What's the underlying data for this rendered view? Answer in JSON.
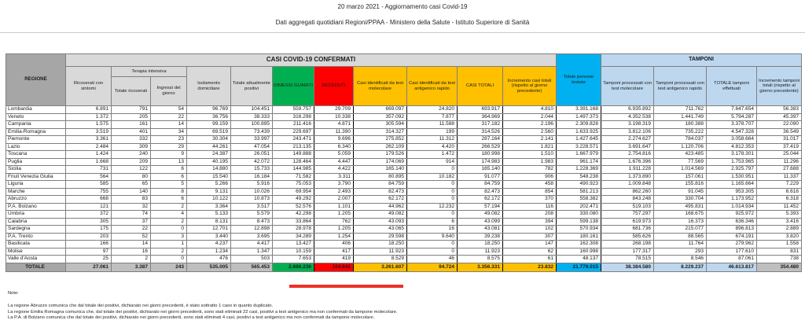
{
  "header": {
    "title": "20 marzo 2021 - Aggiornamento casi Covid-19",
    "subtitle": "Dati aggregati quotidiani Regioni/PPAA - Ministero della Salute - Istituto Superiore di Sanità"
  },
  "colors": {
    "green_dimessi": "#00B050",
    "red_deceduti": "#FF0000",
    "yellow_casi": "#FFC000",
    "cyan_testate": "#00B0F0",
    "blue_tamponi": "#BDD7EE",
    "gray_header": "#A6A6A6",
    "gray_light": "#D9D9D9",
    "gray_total": "#BFBFBF"
  },
  "table": {
    "group_headers": {
      "confermati": "CASI COVID-19 CONFERMATI",
      "terapia_intensiva": "Terapia intensiva",
      "tamponi": "TAMPONI"
    },
    "columns": [
      "REGIONE",
      "Ricoverati con sintomi",
      "Totale ricoverati",
      "Ingressi del giorno",
      "Isolamento domiciliare",
      "Totale attualmente positivi",
      "DIMESSI GUARITI",
      "DECEDUTI",
      "Casi identificati da test molecolare",
      "Casi identificati da test antigenico rapido",
      "CASI TOTALI",
      "Incremento casi totali (rispetto al giorno precedente)",
      "Totale persone testate",
      "Tamponi processati con test molecolare",
      "Tamponi processati con test antigenico rapido",
      "TOTALE tamponi effettuati",
      "Incremento tamponi totali (rispetto al giorno precedente)"
    ],
    "rows": [
      [
        "Lombardia",
        "6.891",
        "791",
        "54",
        "96.769",
        "104.451",
        "559.757",
        "29.709",
        "669.097",
        "24.820",
        "693.917",
        "4.810",
        "3.391.168",
        "6.935.892",
        "711.762",
        "7.647.654",
        "56.383"
      ],
      [
        "Veneto",
        "1.372",
        "205",
        "22",
        "36.756",
        "38.333",
        "316.298",
        "10.338",
        "357.092",
        "7.877",
        "364.969",
        "2.044",
        "1.497.373",
        "4.352.538",
        "1.441.749",
        "5.794.287",
        "45.397"
      ],
      [
        "Campania",
        "1.575",
        "161",
        "14",
        "99.159",
        "100.895",
        "211.416",
        "4.871",
        "305.594",
        "11.588",
        "317.182",
        "2.196",
        "2.309.828",
        "3.198.319",
        "180.388",
        "3.378.707",
        "22.090"
      ],
      [
        "Emilia-Romagna",
        "3.519",
        "401",
        "34",
        "69.519",
        "73.439",
        "229.697",
        "11.390",
        "314.327",
        "199",
        "314.526",
        "2.560",
        "1.633.925",
        "3.812.106",
        "735.222",
        "4.547.328",
        "36.549"
      ],
      [
        "Piemonte",
        "3.361",
        "332",
        "23",
        "30.304",
        "33.997",
        "243.471",
        "9.696",
        "275.852",
        "11.312",
        "287.164",
        "2.141",
        "1.427.645",
        "2.274.627",
        "784.037",
        "3.058.664",
        "31.017"
      ],
      [
        "Lazio",
        "2.484",
        "309",
        "29",
        "44.261",
        "47.054",
        "213.135",
        "6.340",
        "262.109",
        "4.420",
        "266.529",
        "1.821",
        "3.228.571",
        "3.691.647",
        "1.120.706",
        "4.812.353",
        "37.419"
      ],
      [
        "Toscana",
        "1.424",
        "240",
        "9",
        "24.387",
        "26.051",
        "149.888",
        "5.059",
        "179.526",
        "1.472",
        "180.998",
        "1.510",
        "1.667.979",
        "2.754.816",
        "423.485",
        "3.178.301",
        "25.044"
      ],
      [
        "Puglia",
        "1.668",
        "209",
        "13",
        "40.195",
        "42.072",
        "128.464",
        "4.447",
        "174.069",
        "914",
        "174.983",
        "1.983",
        "961.174",
        "1.676.396",
        "77.569",
        "1.753.965",
        "11.296"
      ],
      [
        "Sicilia",
        "731",
        "122",
        "6",
        "14.880",
        "15.733",
        "144.985",
        "4.422",
        "165.140",
        "0",
        "165.140",
        "782",
        "1.228.369",
        "1.911.228",
        "1.014.569",
        "2.925.797",
        "27.688"
      ],
      [
        "Friuli Venezia Giulia",
        "564",
        "80",
        "6",
        "15.540",
        "16.184",
        "71.582",
        "3.311",
        "80.895",
        "10.182",
        "91.077",
        "906",
        "548.238",
        "1.373.890",
        "157.061",
        "1.530.951",
        "11.337"
      ],
      [
        "Liguria",
        "585",
        "65",
        "5",
        "5.266",
        "5.916",
        "75.053",
        "3.790",
        "84.759",
        "0",
        "84.759",
        "458",
        "490.923",
        "1.009.848",
        "155.816",
        "1.165.664",
        "7.229"
      ],
      [
        "Marche",
        "755",
        "140",
        "8",
        "9.131",
        "10.026",
        "69.954",
        "2.493",
        "82.473",
        "0",
        "82.473",
        "854",
        "581.213",
        "862.260",
        "91.045",
        "953.305",
        "6.616"
      ],
      [
        "Abruzzo",
        "668",
        "83",
        "6",
        "10.122",
        "10.873",
        "49.292",
        "2.007",
        "62.172",
        "0",
        "62.172",
        "370",
        "558.382",
        "843.248",
        "330.704",
        "1.173.952",
        "6.318"
      ],
      [
        "P.A. Bolzano",
        "121",
        "32",
        "2",
        "3.364",
        "3.517",
        "52.576",
        "1.101",
        "44.962",
        "12.232",
        "57.194",
        "116",
        "202.471",
        "519.103",
        "495.831",
        "1.014.934",
        "11.452"
      ],
      [
        "Umbria",
        "372",
        "74",
        "4",
        "5.133",
        "5.579",
        "42.298",
        "1.205",
        "49.082",
        "0",
        "49.082",
        "208",
        "330.080",
        "757.297",
        "168.675",
        "925.972",
        "5.393"
      ],
      [
        "Calabria",
        "305",
        "37",
        "2",
        "8.131",
        "8.473",
        "33.864",
        "762",
        "43.093",
        "6",
        "43.099",
        "394",
        "599.138",
        "619.973",
        "16.373",
        "636.346",
        "3.416"
      ],
      [
        "Sardegna",
        "175",
        "22",
        "0",
        "12.701",
        "12.898",
        "28.978",
        "1.205",
        "43.065",
        "16",
        "43.081",
        "102",
        "570.934",
        "681.736",
        "215.077",
        "896.813",
        "2.889"
      ],
      [
        "P.A. Trento",
        "203",
        "52",
        "3",
        "3.440",
        "3.695",
        "34.289",
        "1.254",
        "29.598",
        "9.640",
        "39.238",
        "307",
        "180.161",
        "585.626",
        "88.565",
        "674.191",
        "3.820"
      ],
      [
        "Basilicata",
        "166",
        "14",
        "1",
        "4.237",
        "4.417",
        "13.427",
        "406",
        "18.250",
        "0",
        "18.250",
        "147",
        "162.308",
        "268.198",
        "11.764",
        "279.962",
        "1.558"
      ],
      [
        "Molise",
        "97",
        "16",
        "2",
        "1.234",
        "1.347",
        "10.159",
        "417",
        "11.923",
        "0",
        "11.923",
        "62",
        "160.998",
        "177.317",
        "293",
        "177.610",
        "831"
      ],
      [
        "Valle d'Aosta",
        "25",
        "2",
        "0",
        "476",
        "503",
        "7.653",
        "419",
        "8.529",
        "46",
        "8.575",
        "61",
        "48.137",
        "78.515",
        "8.546",
        "87.061",
        "738"
      ]
    ],
    "total_row": [
      "TOTALE",
      "27.061",
      "3.387",
      "243",
      "535.005",
      "565.453",
      "2.686.236",
      "104.642",
      "3.261.607",
      "94.724",
      "3.356.331",
      "23.832",
      "21.779.015",
      "38.384.580",
      "8.229.237",
      "46.613.817",
      "354.480"
    ]
  },
  "notes": {
    "label": "Note:",
    "lines": [
      "La regione Abruzzo comunica che dal totale dei positivi, dichiarato nei giorni precedenti, è stato sottratto 1 caso in quanto duplicato.",
      "La regione Emilia Romagna comunica che, dal totale dei positivi, dichiarato nei giorni precedenti, sono stati eliminati 22 casi, positivi a test antigenico ma non confermati da tampone molecolare.",
      "La P.A. di Bolzano comunica che dal totale dei positivi, dichiarato nei giorni precedenti, sono stati eliminati 4 casi, positivi a test antigenico ma non confermati da tampone molecolare."
    ]
  }
}
